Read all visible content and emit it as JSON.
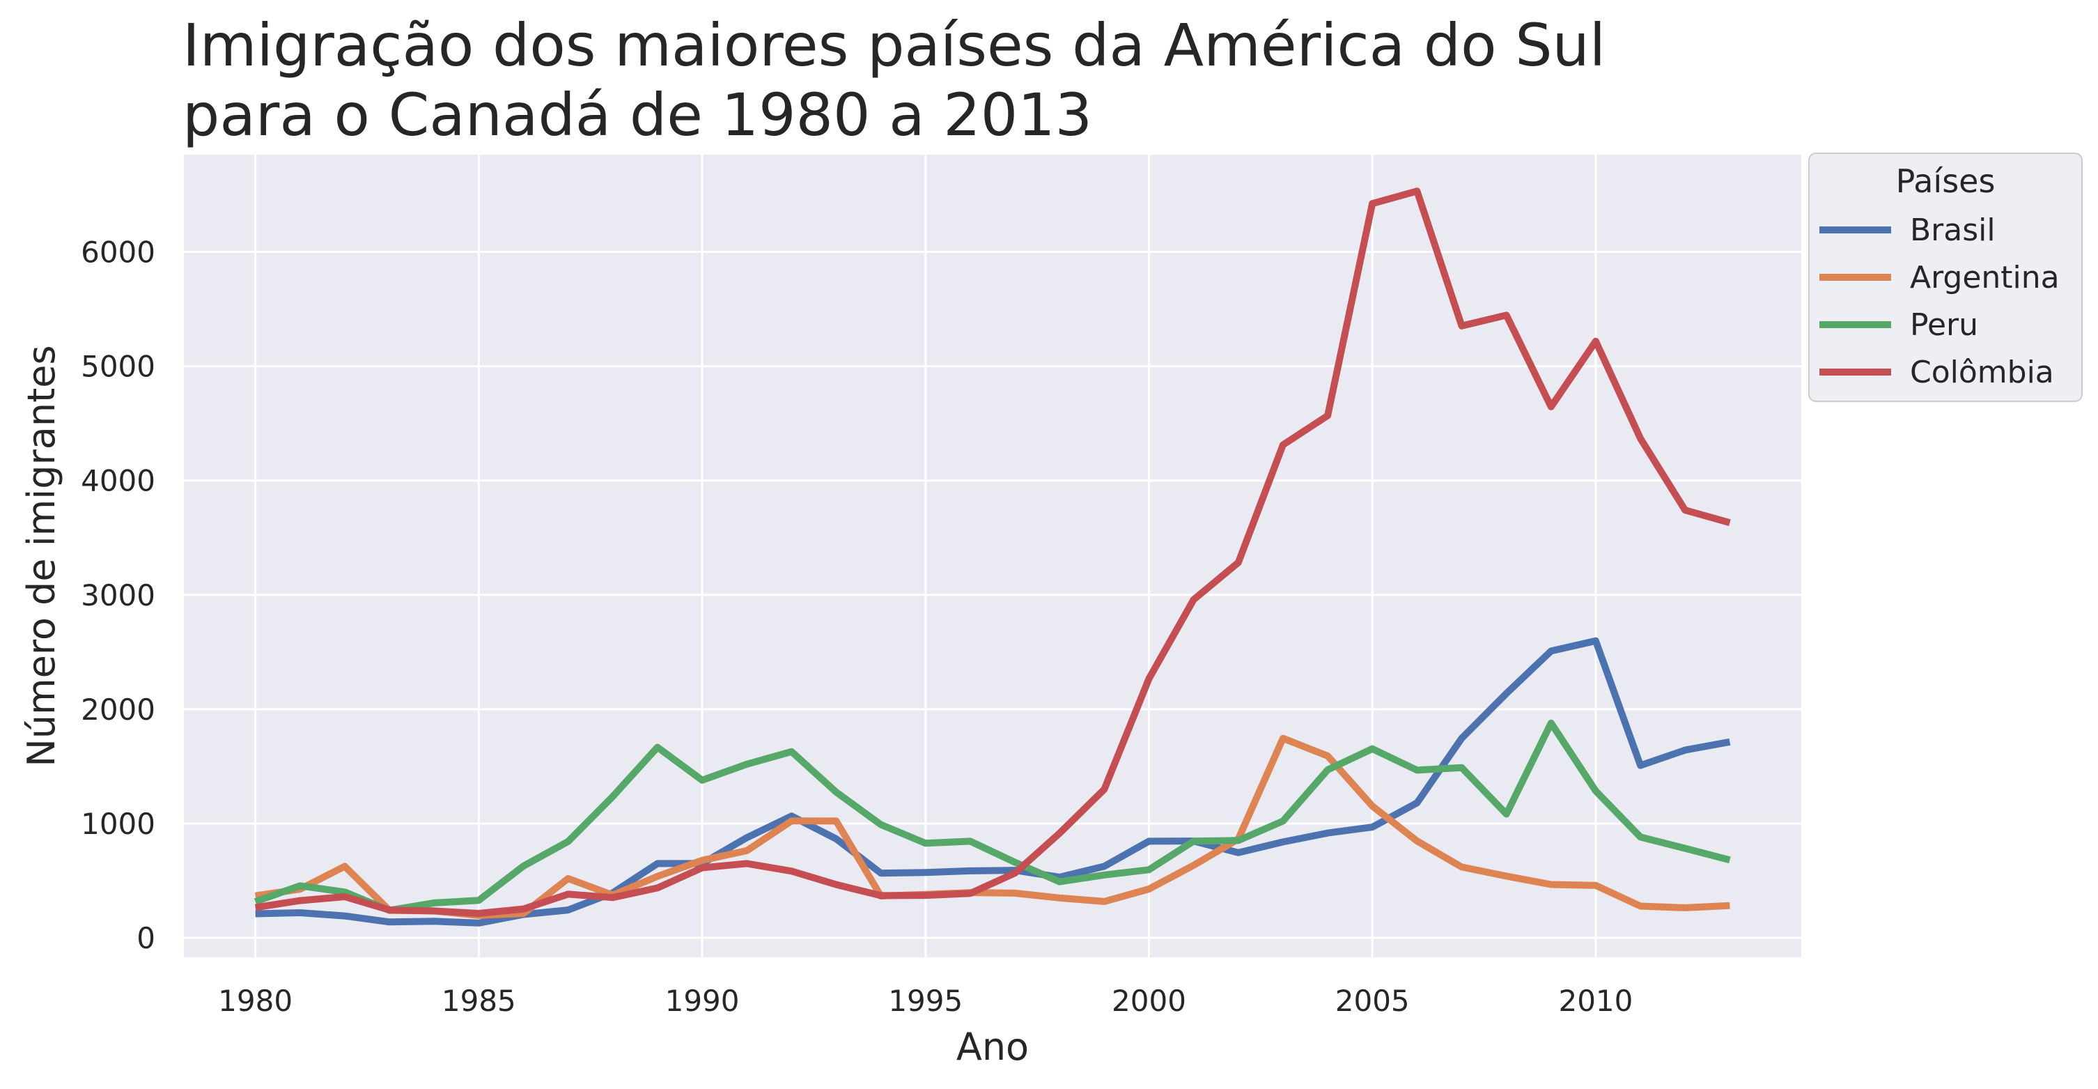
{
  "chart_data": {
    "type": "line",
    "title_lines": [
      "Imigração dos maiores países da América do Sul",
      "para o Canadá de 1980 a 2013"
    ],
    "xlabel": "Ano",
    "ylabel": "Número de imigrantes",
    "xlim": [
      1978.4,
      2014.6
    ],
    "ylim": [
      -170,
      6850
    ],
    "x_ticks": [
      1980,
      1985,
      1990,
      1995,
      2000,
      2005,
      2010
    ],
    "y_ticks": [
      0,
      1000,
      2000,
      3000,
      4000,
      5000,
      6000
    ],
    "grid": true,
    "background": "#EAEAF2",
    "legend": {
      "title": "Países",
      "position": "outside-top-right"
    },
    "x": [
      1980,
      1981,
      1982,
      1983,
      1984,
      1985,
      1986,
      1987,
      1988,
      1989,
      1990,
      1991,
      1992,
      1993,
      1994,
      1995,
      1996,
      1997,
      1998,
      1999,
      2000,
      2001,
      2002,
      2003,
      2004,
      2005,
      2006,
      2007,
      2008,
      2009,
      2010,
      2011,
      2012,
      2013
    ],
    "series": [
      {
        "name": "Brasil",
        "color": "#4C72B0",
        "values": [
          211,
          220,
          192,
          139,
          145,
          130,
          205,
          244,
          394,
          650,
          650,
          877,
          1066,
          866,
          566,
          572,
          586,
          591,
          531,
          626,
          845,
          847,
          745,
          839,
          917,
          969,
          1181,
          1746,
          2138,
          2509,
          2598,
          1508,
          1642,
          1714
        ]
      },
      {
        "name": "Argentina",
        "color": "#DD8452",
        "values": [
          368,
          426,
          626,
          241,
          237,
          196,
          213,
          519,
          374,
          538,
          678,
          763,
          1023,
          1022,
          366,
          380,
          396,
          391,
          349,
          318,
          427,
          635,
          865,
          1745,
          1591,
          1153,
          847,
          620,
          540,
          467,
          459,
          278,
          263,
          282
        ]
      },
      {
        "name": "Peru",
        "color": "#55A868",
        "values": [
          317,
          456,
          401,
          241,
          306,
          328,
          628,
          843,
          1237,
          1667,
          1379,
          1519,
          1629,
          1275,
          991,
          828,
          845,
          661,
          491,
          550,
          596,
          846,
          852,
          1022,
          1470,
          1654,
          1467,
          1489,
          1083,
          1879,
          1285,
          882,
          783,
          681
        ]
      },
      {
        "name": "Colômbia",
        "color": "#C44E52",
        "values": [
          266,
          326,
          360,
          244,
          235,
          214,
          253,
          382,
          353,
          437,
          613,
          650,
          584,
          466,
          370,
          372,
          389,
          567,
          915,
          1300,
          2267,
          2958,
          3283,
          4312,
          4568,
          6422,
          6531,
          5353,
          5446,
          4645,
          5219,
          4368,
          3741,
          3631
        ]
      }
    ]
  }
}
